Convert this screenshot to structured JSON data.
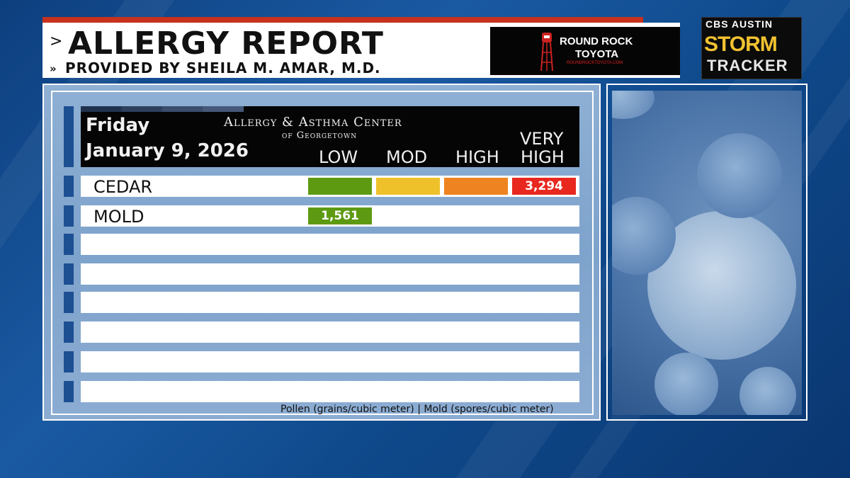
{
  "header": {
    "title": "ALLERGY REPORT",
    "subtitle": "PROVIDED BY SHEILA M. AMAR, M.D.",
    "title_arrow": ">",
    "subtitle_arrow": "»"
  },
  "sponsor": {
    "name_line1": "ROUND ROCK",
    "name_line2": "TOYOTA",
    "url": "ROUNDROCKTOYOTA.COM",
    "icon": "water-tower-icon"
  },
  "brand": {
    "network": "CBS AUSTIN",
    "line1": "STORM",
    "line2": "TRACKER"
  },
  "report": {
    "day": "Friday",
    "date": "January 9, 2026",
    "center_name": "Allergy & Asthma Center",
    "center_location": "of Georgetown",
    "levels": [
      "LOW",
      "MOD",
      "HIGH",
      "VERY",
      "HIGH"
    ],
    "level_colors": {
      "low": "#5d9a12",
      "mod": "#eec12b",
      "high": "#ee8322",
      "very_high": "#e8281f"
    },
    "rows": [
      {
        "label": "CEDAR",
        "level": "very high",
        "value": "3,294"
      },
      {
        "label": "MOLD",
        "level": "low",
        "value": "1,561"
      }
    ],
    "footnote": "Pollen (grains/cubic meter) | Mold (spores/cubic meter)"
  }
}
